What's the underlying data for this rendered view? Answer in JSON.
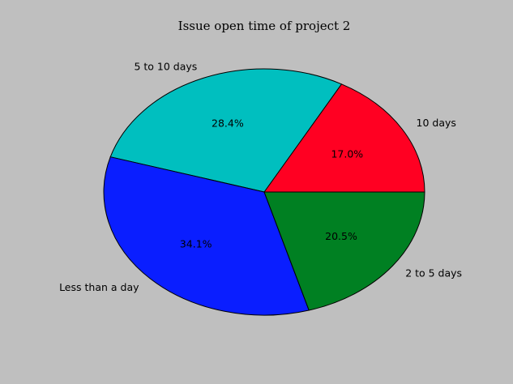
{
  "chart_data": {
    "type": "pie",
    "title": "Issue open time of project 2",
    "slices": [
      {
        "label": "10 days",
        "value": 17.0,
        "pct_label": "17.0%",
        "color": "#ff0022"
      },
      {
        "label": "5 to 10 days",
        "value": 28.4,
        "pct_label": "28.4%",
        "color": "#00bfbf"
      },
      {
        "label": "Less than a day",
        "value": 34.1,
        "pct_label": "34.1%",
        "color": "#0a1eff"
      },
      {
        "label": "2 to 5 days",
        "value": 20.5,
        "pct_label": "20.5%",
        "color": "#008022"
      }
    ],
    "start_angle_deg": 0,
    "direction": "counterclockwise",
    "edge_color": "#000000",
    "background": "#bfbfbf"
  }
}
